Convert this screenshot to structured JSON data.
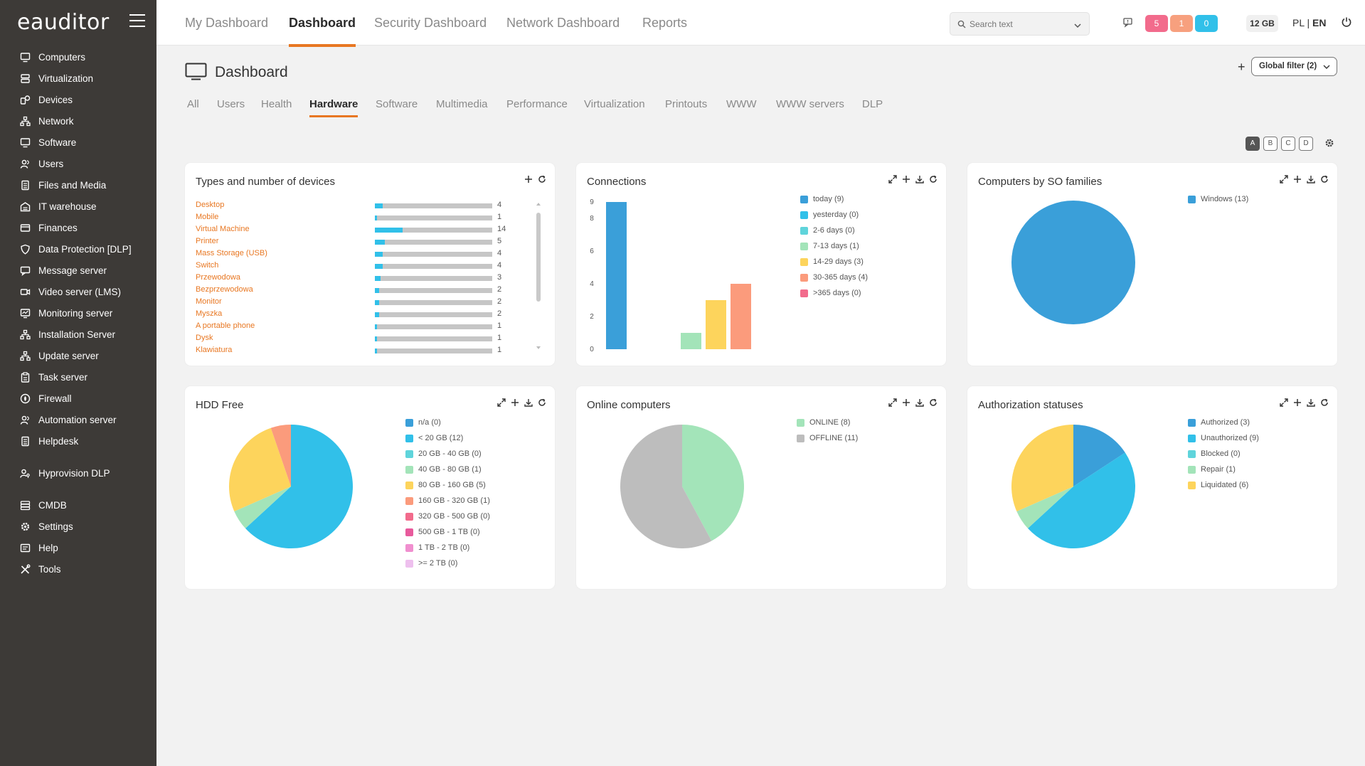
{
  "app": {
    "logo_text": "eauditor",
    "top_tabs": [
      "My Dashboard",
      "Dashboard",
      "Security Dashboard",
      "Network Dashboard",
      "Reports"
    ],
    "search_placeholder": "Search text",
    "badges": [
      {
        "value": "5",
        "color": "#f26b8c"
      },
      {
        "value": "1",
        "color": "#f7a07e"
      },
      {
        "value": "0",
        "color": "#31c0e9"
      }
    ],
    "storage": "12 GB",
    "lang_pl": "PL",
    "lang_sep": " | ",
    "lang_en": "EN"
  },
  "sidebar": {
    "items": [
      {
        "label": "Computers",
        "icon": "monitor-icon"
      },
      {
        "label": "Virtualization",
        "icon": "server-icon"
      },
      {
        "label": "Devices",
        "icon": "devices-icon"
      },
      {
        "label": "Network",
        "icon": "network-icon"
      },
      {
        "label": "Software",
        "icon": "monitor-icon"
      },
      {
        "label": "Users",
        "icon": "users-icon"
      },
      {
        "label": "Files and Media",
        "icon": "file-icon"
      },
      {
        "label": "IT warehouse",
        "icon": "warehouse-icon"
      },
      {
        "label": "Finances",
        "icon": "card-icon"
      },
      {
        "label": "Data Protection [DLP]",
        "icon": "shield-icon"
      },
      {
        "label": "Message server",
        "icon": "message-icon"
      },
      {
        "label": "Video server (LMS)",
        "icon": "video-icon"
      },
      {
        "label": "Monitoring server",
        "icon": "monitoring-icon"
      },
      {
        "label": "Installation Server",
        "icon": "network-icon"
      },
      {
        "label": "Update server",
        "icon": "network-icon"
      },
      {
        "label": "Task server",
        "icon": "clipboard-icon"
      },
      {
        "label": "Firewall",
        "icon": "firewall-icon"
      },
      {
        "label": "Automation server",
        "icon": "users-icon"
      },
      {
        "label": "Helpdesk",
        "icon": "file-icon"
      }
    ],
    "group2": [
      {
        "label": "Hyprovision DLP",
        "icon": "key-user-icon"
      }
    ],
    "group3": [
      {
        "label": "CMDB",
        "icon": "database-icon"
      },
      {
        "label": "Settings",
        "icon": "gear-icon"
      },
      {
        "label": "Help",
        "icon": "help-icon"
      },
      {
        "label": "Tools",
        "icon": "tools-icon"
      }
    ]
  },
  "page": {
    "title": "Dashboard",
    "global_filter": "Global filter (2)",
    "sub_tabs": [
      "All",
      "Users",
      "Health",
      "Hardware",
      "Software",
      "Multimedia",
      "Performance",
      "Virtualization",
      "Printouts",
      "WWW",
      "WWW servers",
      "DLP"
    ],
    "layouts": [
      "A",
      "B",
      "C",
      "D"
    ]
  },
  "cards": {
    "devices": {
      "title": "Types and number of devices",
      "items": [
        {
          "name": "Desktop",
          "count": 4
        },
        {
          "name": "Mobile",
          "count": 1
        },
        {
          "name": "Virtual Machine",
          "count": 14
        },
        {
          "name": "Printer",
          "count": 5
        },
        {
          "name": "Mass Storage (USB)",
          "count": 4
        },
        {
          "name": "Switch",
          "count": 4
        },
        {
          "name": "Przewodowa",
          "count": 3
        },
        {
          "name": "Bezprzewodowa",
          "count": 2
        },
        {
          "name": "Monitor",
          "count": 2
        },
        {
          "name": "Myszka",
          "count": 2
        },
        {
          "name": "A portable phone",
          "count": 1
        },
        {
          "name": "Dysk",
          "count": 1
        },
        {
          "name": "Klawiatura",
          "count": 1
        }
      ]
    },
    "connections": {
      "title": "Connections",
      "legend": [
        {
          "label": "today (9)",
          "color": "#3a9fd9"
        },
        {
          "label": "yesterday (0)",
          "color": "#31c0e9"
        },
        {
          "label": "2-6 days (0)",
          "color": "#5fd4db"
        },
        {
          "label": "7-13 days (1)",
          "color": "#a3e4b9"
        },
        {
          "label": "14-29 days (3)",
          "color": "#fdd45c"
        },
        {
          "label": "30-365 days (4)",
          "color": "#fb9b7c"
        },
        {
          "label": ">365 days (0)",
          "color": "#f26b8c"
        }
      ]
    },
    "so_families": {
      "title": "Computers by SO families",
      "legend": [
        {
          "label": "Windows (13)",
          "color": "#3a9fd9"
        }
      ]
    },
    "hdd": {
      "title": "HDD Free",
      "legend": [
        {
          "label": "n/a (0)",
          "color": "#3a9fd9"
        },
        {
          "label": "< 20 GB (12)",
          "color": "#31c0e9"
        },
        {
          "label": "20 GB - 40 GB (0)",
          "color": "#5fd4db"
        },
        {
          "label": "40 GB - 80 GB (1)",
          "color": "#a3e4b9"
        },
        {
          "label": "80 GB - 160 GB (5)",
          "color": "#fdd45c"
        },
        {
          "label": "160 GB - 320 GB (1)",
          "color": "#fb9b7c"
        },
        {
          "label": "320 GB - 500 GB (0)",
          "color": "#f26b8c"
        },
        {
          "label": "500 GB - 1 TB (0)",
          "color": "#e85a9c"
        },
        {
          "label": "1 TB - 2 TB (0)",
          "color": "#f08fcf"
        },
        {
          "label": ">= 2 TB (0)",
          "color": "#eec0ee"
        }
      ]
    },
    "online": {
      "title": "Online computers",
      "legend": [
        {
          "label": "ONLINE (8)",
          "color": "#a3e4b9"
        },
        {
          "label": "OFFLINE (11)",
          "color": "#bdbdbd"
        }
      ]
    },
    "auth": {
      "title": "Authorization statuses",
      "legend": [
        {
          "label": "Authorized (3)",
          "color": "#3a9fd9"
        },
        {
          "label": "Unauthorized (9)",
          "color": "#31c0e9"
        },
        {
          "label": "Blocked (0)",
          "color": "#5fd4db"
        },
        {
          "label": "Repair (1)",
          "color": "#a3e4b9"
        },
        {
          "label": "Liquidated (6)",
          "color": "#fdd45c"
        }
      ]
    }
  },
  "chart_data": [
    {
      "type": "bar",
      "title": "Connections",
      "categories": [
        "today",
        "yesterday",
        "2-6 days",
        "7-13 days",
        "14-29 days",
        "30-365 days",
        ">365 days"
      ],
      "values": [
        9,
        0,
        0,
        1,
        3,
        4,
        0
      ],
      "colors": [
        "#3a9fd9",
        "#31c0e9",
        "#5fd4db",
        "#a3e4b9",
        "#fdd45c",
        "#fb9b7c",
        "#f26b8c"
      ],
      "y_ticks": [
        "0",
        "2",
        "4",
        "6",
        "8",
        "9"
      ],
      "ylim": [
        0,
        9
      ],
      "legend": "right"
    },
    {
      "type": "pie",
      "title": "Computers by SO families",
      "labels": [
        "Windows"
      ],
      "values": [
        13
      ],
      "colors": [
        "#3a9fd9"
      ],
      "legend": "right"
    },
    {
      "type": "pie",
      "title": "HDD Free",
      "labels": [
        "n/a",
        "< 20 GB",
        "20 GB - 40 GB",
        "40 GB - 80 GB",
        "80 GB - 160 GB",
        "160 GB - 320 GB",
        "320 GB - 500 GB",
        "500 GB - 1 TB",
        "1 TB - 2 TB",
        ">= 2 TB"
      ],
      "values": [
        0,
        12,
        0,
        1,
        5,
        1,
        0,
        0,
        0,
        0
      ],
      "colors": [
        "#3a9fd9",
        "#31c0e9",
        "#5fd4db",
        "#a3e4b9",
        "#fdd45c",
        "#fb9b7c",
        "#f26b8c",
        "#e85a9c",
        "#f08fcf",
        "#eec0ee"
      ],
      "legend": "right"
    },
    {
      "type": "pie",
      "title": "Online computers",
      "labels": [
        "ONLINE",
        "OFFLINE"
      ],
      "values": [
        8,
        11
      ],
      "colors": [
        "#a3e4b9",
        "#bdbdbd"
      ],
      "legend": "right"
    },
    {
      "type": "pie",
      "title": "Authorization statuses",
      "labels": [
        "Authorized",
        "Unauthorized",
        "Blocked",
        "Repair",
        "Liquidated"
      ],
      "values": [
        3,
        9,
        0,
        1,
        6
      ],
      "colors": [
        "#3a9fd9",
        "#31c0e9",
        "#5fd4db",
        "#a3e4b9",
        "#fdd45c"
      ],
      "legend": "right"
    },
    {
      "type": "bar",
      "title": "Types and number of devices",
      "orientation": "horizontal",
      "categories": [
        "Desktop",
        "Mobile",
        "Virtual Machine",
        "Printer",
        "Mass Storage (USB)",
        "Switch",
        "Przewodowa",
        "Bezprzewodowa",
        "Monitor",
        "Myszka",
        "A portable phone",
        "Dysk",
        "Klawiatura"
      ],
      "values": [
        4,
        1,
        14,
        5,
        4,
        4,
        3,
        2,
        2,
        2,
        1,
        1,
        1
      ],
      "xlim": [
        0,
        60
      ]
    }
  ]
}
